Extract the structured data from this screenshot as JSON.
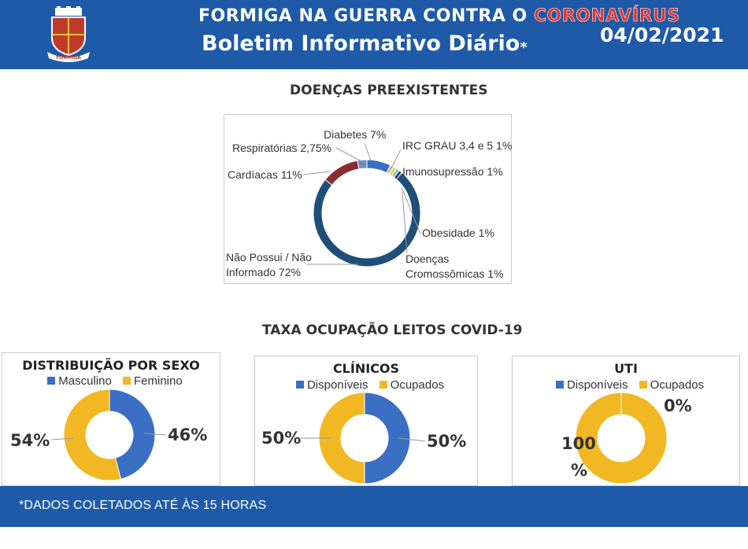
{
  "header": {
    "title_part1": "FORMIGA NA GUERRA CONTRA O",
    "title_part2": "CORONAVÍRUS",
    "subtitle": "Boletim Informativo Diário",
    "asterisk": "*",
    "date": "04/02/2021",
    "crest_text": "FORMIGA"
  },
  "sections": {
    "preexisting_title": "DOENÇAS PREEXISTENTES",
    "beds_title": "TAXA OCUPAÇÃO LEITOS COVID-19"
  },
  "footer": {
    "note": "*DADOS COLETADOS ATÉ ÀS 15 HORAS"
  },
  "colors": {
    "brand_blue": "#1e5aa8",
    "navy": "#1f4e79",
    "blue": "#3a6fc4",
    "gold": "#f2b824",
    "dark_red": "#8b2b2e",
    "red": "#c0403c"
  },
  "chart_data": [
    {
      "type": "pie",
      "title": "DOENÇAS PREEXISTENTES",
      "slices": [
        {
          "label": "Diabetes 7%",
          "value": 7,
          "color": "#3a6fc4"
        },
        {
          "label": "IRC GRAU 3,4 e 5 1%",
          "value": 1,
          "color": "#c3c3c3"
        },
        {
          "label": "Imunosupressão 1%",
          "value": 1,
          "color": "#f2d233"
        },
        {
          "label": "Obesidade 1%",
          "value": 1,
          "color": "#7cc3e3"
        },
        {
          "label": "Doenças Cromossômicas 1%",
          "value": 1,
          "color": "#2b3a5a"
        },
        {
          "label": "Não Possui / Não Informado 72%",
          "value": 72,
          "color": "#1f4e79"
        },
        {
          "label": "Cardíacas 11%",
          "value": 11,
          "color": "#8b2b2e"
        },
        {
          "label": "Respiratórias 2,75%",
          "value": 2.75,
          "color": "#6a8fc7"
        }
      ]
    },
    {
      "type": "pie",
      "title": "DISTRIBUIÇÃO POR SEXO",
      "legend": [
        "Masculino",
        "Feminino"
      ],
      "slices": [
        {
          "label": "46%",
          "value": 46,
          "color": "#3a6fc4"
        },
        {
          "label": "54%",
          "value": 54,
          "color": "#f2b824"
        }
      ]
    },
    {
      "type": "pie",
      "title": "CLÍNICOS",
      "legend": [
        "Disponíveis",
        "Ocupados"
      ],
      "slices": [
        {
          "label": "50%",
          "value": 50,
          "color": "#3a6fc4"
        },
        {
          "label": "50%",
          "value": 50,
          "color": "#f2b824"
        }
      ]
    },
    {
      "type": "pie",
      "title": "UTI",
      "legend": [
        "Disponíveis",
        "Ocupados"
      ],
      "slices": [
        {
          "label": "0%",
          "value": 0,
          "color": "#3a6fc4"
        },
        {
          "label": "100 %",
          "value": 100,
          "color": "#f2b824"
        }
      ]
    }
  ]
}
